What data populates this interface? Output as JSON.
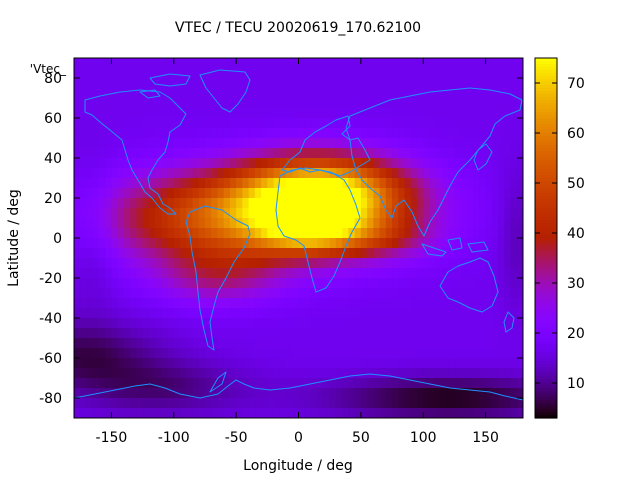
{
  "chart_data": {
    "type": "heatmap",
    "title": "VTEC / TECU 20020619_170.62100",
    "xlabel": "Longitude / deg",
    "ylabel": "Latitude / deg",
    "key_label": "'Vtec_",
    "xlim": [
      -180,
      180
    ],
    "ylim": [
      -90,
      90
    ],
    "color_range": [
      3,
      75
    ],
    "x_ticks": [
      -150,
      -100,
      -50,
      0,
      50,
      100,
      150
    ],
    "y_ticks": [
      -80,
      -60,
      -40,
      -20,
      0,
      20,
      40,
      60,
      80
    ],
    "colorbar_ticks": [
      10,
      20,
      30,
      40,
      50,
      60,
      70
    ],
    "grid": false,
    "colormap": "gnuplot-pm3d",
    "coastline_color": "#1e90ff",
    "background_tec": 17,
    "features": [
      {
        "lon": 20,
        "lat": 22,
        "tec": 52,
        "sx": 45,
        "sy": 13
      },
      {
        "lon": -40,
        "lat": 10,
        "tec": 40,
        "sx": 75,
        "sy": 16
      },
      {
        "lon": 10,
        "lat": 3,
        "tec": 22,
        "sx": 28,
        "sy": 7
      },
      {
        "lon": -65,
        "lat": -20,
        "tec": 12,
        "sx": 35,
        "sy": 10
      },
      {
        "lon": 65,
        "lat": 0,
        "tec": 10,
        "sx": 30,
        "sy": 7
      },
      {
        "lon": -175,
        "lat": -58,
        "tec": -10,
        "sx": 45,
        "sy": 12
      },
      {
        "lon": 120,
        "lat": -80,
        "tec": -13,
        "sx": 70,
        "sy": 8
      },
      {
        "lon": -110,
        "lat": -75,
        "tec": -8,
        "sx": 50,
        "sy": 10
      },
      {
        "lon": -165,
        "lat": 2,
        "tec": -5,
        "sx": 15,
        "sy": 25
      },
      {
        "lon": 175,
        "lat": 0,
        "tec": -5,
        "sx": 10,
        "sy": 25
      }
    ]
  }
}
